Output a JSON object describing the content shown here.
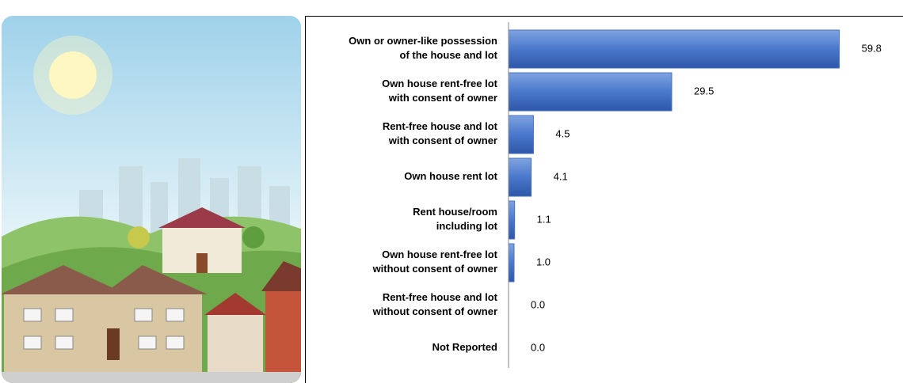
{
  "chart_data": {
    "type": "hbar",
    "categories": [
      "Own or owner-like possession\nof the house and lot",
      "Own house rent-free lot\nwith consent of owner",
      "Rent-free house and lot\nwith consent of owner",
      "Own house rent lot",
      "Rent house/room\nincluding lot",
      "Own house rent-free lot\nwithout consent of owner",
      "Rent-free house and lot\nwithout consent of owner",
      "Not Reported"
    ],
    "values": [
      59.8,
      29.5,
      4.5,
      4.1,
      1.1,
      1.0,
      0.0,
      0.0
    ],
    "value_labels": [
      "59.8",
      "29.5",
      "4.5",
      "4.1",
      "1.1",
      "1.0",
      "0.0",
      "0.0"
    ],
    "color": "#4472c4",
    "xlim": [
      0,
      60
    ]
  }
}
